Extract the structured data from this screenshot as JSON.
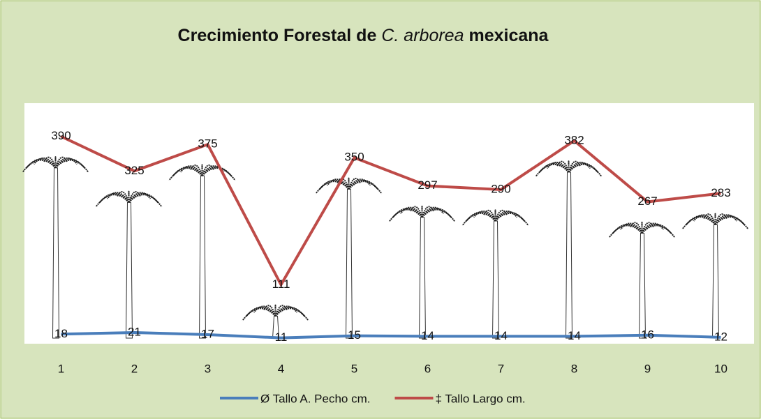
{
  "chart_data": {
    "type": "line",
    "title": [
      "Crecimiento Forestal de",
      "C. arborea",
      "mexicana"
    ],
    "categories": [
      "1",
      "2",
      "3",
      "4",
      "5",
      "6",
      "7",
      "8",
      "9",
      "10"
    ],
    "series": [
      {
        "name": "Ø Tallo A. Pecho cm.",
        "color": "#4a7ebb",
        "values": [
          18,
          21,
          17,
          11,
          15,
          14,
          14,
          14,
          16,
          12
        ]
      },
      {
        "name": "‡ Tallo Largo cm.",
        "color": "#be4b48",
        "values": [
          390,
          325,
          375,
          111,
          350,
          297,
          290,
          382,
          267,
          283
        ]
      }
    ],
    "ylim": [
      0,
      450
    ],
    "legend": "bottom"
  }
}
